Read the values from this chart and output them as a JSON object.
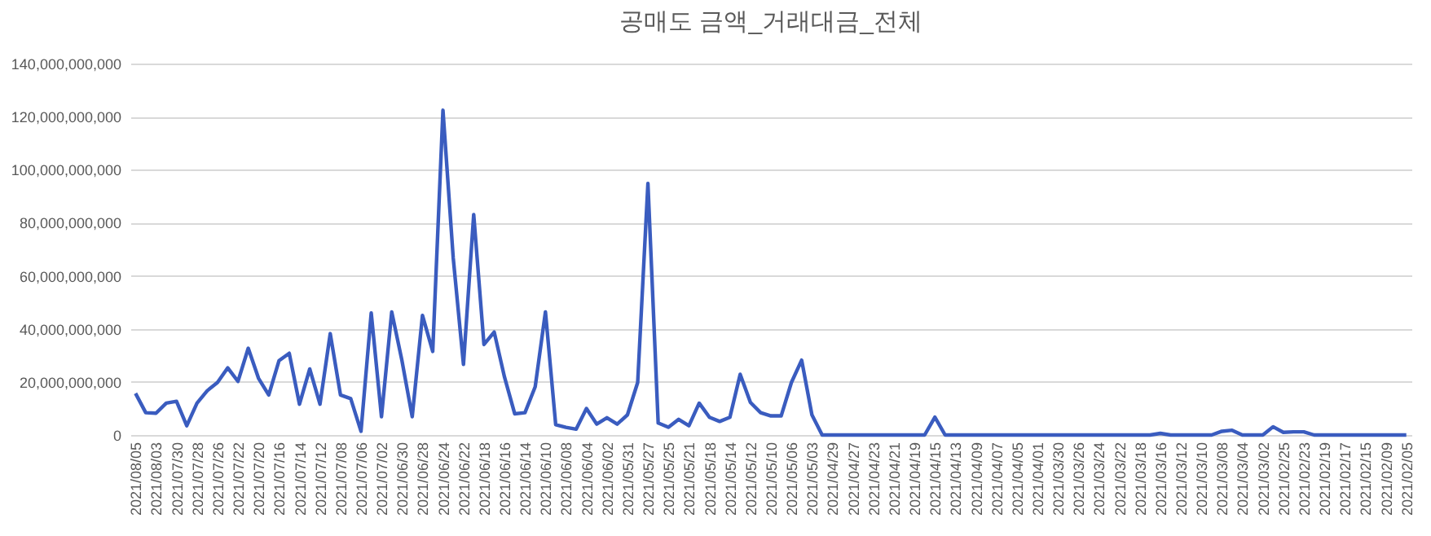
{
  "chart_data": {
    "type": "line",
    "title": "공매도 금액_거래대금_전체",
    "categories": [
      "2021/08/05",
      null,
      "2021/08/03",
      null,
      "2021/07/30",
      null,
      "2021/07/28",
      null,
      "2021/07/26",
      null,
      "2021/07/22",
      null,
      "2021/07/20",
      null,
      "2021/07/16",
      null,
      "2021/07/14",
      null,
      "2021/07/12",
      null,
      "2021/07/08",
      null,
      "2021/07/06",
      null,
      "2021/07/02",
      null,
      "2021/06/30",
      null,
      "2021/06/28",
      null,
      "2021/06/24",
      null,
      "2021/06/22",
      null,
      "2021/06/18",
      null,
      "2021/06/16",
      null,
      "2021/06/14",
      null,
      "2021/06/10",
      null,
      "2021/06/08",
      null,
      "2021/06/04",
      null,
      "2021/06/02",
      null,
      "2021/05/31",
      null,
      "2021/05/27",
      null,
      "2021/05/25",
      null,
      "2021/05/21",
      null,
      "2021/05/18",
      null,
      "2021/05/14",
      null,
      "2021/05/12",
      null,
      "2021/05/10",
      null,
      "2021/05/06",
      null,
      "2021/05/03",
      null,
      "2021/04/29",
      null,
      "2021/04/27",
      null,
      "2021/04/23",
      null,
      "2021/04/21",
      null,
      "2021/04/19",
      null,
      "2021/04/15",
      null,
      "2021/04/13",
      null,
      "2021/04/09",
      null,
      "2021/04/07",
      null,
      "2021/04/05",
      null,
      "2021/04/01",
      null,
      "2021/03/30",
      null,
      "2021/03/26",
      null,
      "2021/03/24",
      null,
      "2021/03/22",
      null,
      "2021/03/18",
      null,
      "2021/03/16",
      null,
      "2021/03/12",
      null,
      "2021/03/10",
      null,
      "2021/03/08",
      null,
      "2021/03/04",
      null,
      "2021/03/02",
      null,
      "2021/02/25",
      null,
      "2021/02/23",
      null,
      "2021/02/19",
      null,
      "2021/02/17",
      null,
      "2021/02/15",
      null,
      "2021/02/09",
      null,
      "2021/02/05"
    ],
    "series": [
      {
        "color": "#3a5cbf",
        "values": [
          15700000000,
          8400000000,
          8200000000,
          12000000000,
          12700000000,
          3500000000,
          12000000000,
          16700000000,
          19800000000,
          25300000000,
          20200000000,
          32700000000,
          21400000000,
          15100000000,
          28000000000,
          30800000000,
          11600000000,
          24900000000,
          11600000000,
          38200000000,
          15100000000,
          13700000000,
          1400000000,
          46000000000,
          6900000000,
          46400000000,
          28000000000,
          6900000000,
          45100000000,
          31500000000,
          122400000000,
          66800000000,
          26600000000,
          83100000000,
          34100000000,
          38800000000,
          21900000000,
          8000000000,
          8400000000,
          18200000000,
          46400000000,
          3900000000,
          2900000000,
          2200000000,
          10000000000,
          4100000000,
          6500000000,
          4100000000,
          7600000000,
          19800000000,
          94800000000,
          4500000000,
          2900000000,
          5900000000,
          3500000000,
          12000000000,
          6700000000,
          5100000000,
          6700000000,
          22900000000,
          12300000000,
          8400000000,
          7200000000,
          7200000000,
          19800000000,
          28200000000,
          7600000000,
          0,
          0,
          0,
          0,
          0,
          0,
          0,
          0,
          0,
          0,
          0,
          6700000000,
          0,
          0,
          0,
          0,
          0,
          0,
          0,
          0,
          0,
          0,
          0,
          0,
          0,
          0,
          0,
          0,
          0,
          0,
          0,
          0,
          0,
          600000000,
          0,
          0,
          0,
          0,
          0,
          1400000000,
          1800000000,
          0,
          0,
          0,
          3100000000,
          1000000000,
          1200000000,
          1200000000,
          0,
          0,
          0,
          0,
          0,
          0,
          0,
          0,
          0,
          0
        ]
      }
    ],
    "ylim": [
      0,
      140000000000
    ],
    "yticks": [
      0,
      {
        "value": 20000000000,
        "label": "20,000,000,000"
      },
      {
        "value": 40000000000,
        "label": "40,000,000,000"
      },
      {
        "value": 60000000000,
        "label": "60,000,000,000"
      },
      {
        "value": 80000000000,
        "label": "80,000,000,000"
      },
      {
        "value": 100000000000,
        "label": "100,000,000,000"
      },
      {
        "value": 120000000000,
        "label": "120,000,000,000"
      },
      {
        "value": 140000000000,
        "label": "140,000,000,000"
      }
    ],
    "grid": "y",
    "legend": false
  }
}
